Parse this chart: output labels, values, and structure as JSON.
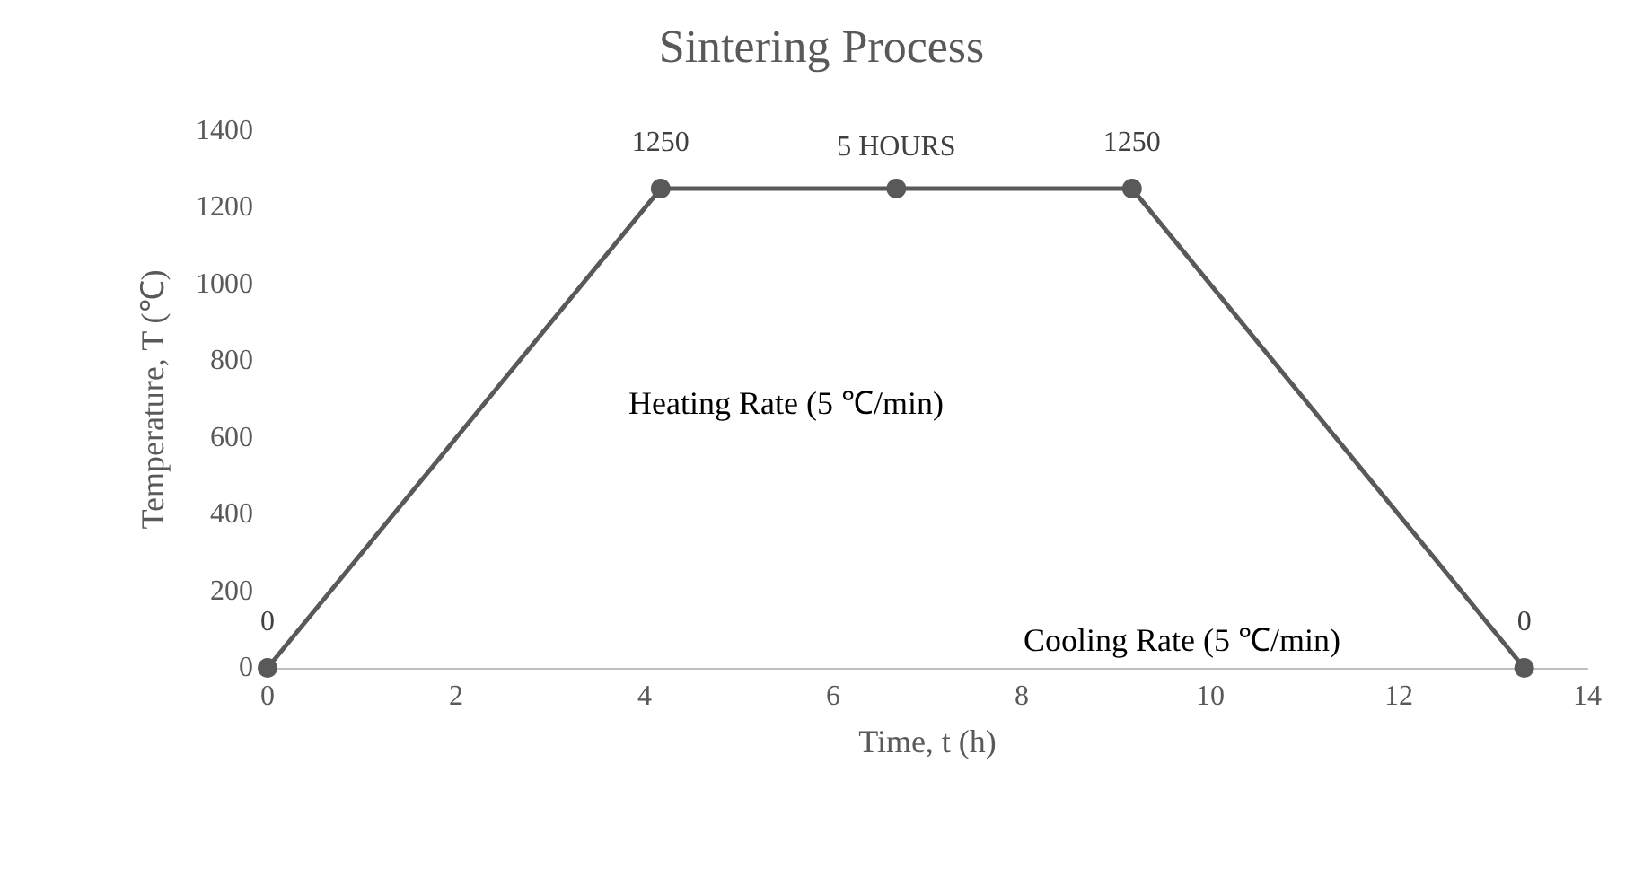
{
  "chart_data": {
    "type": "line",
    "title": "Sintering Process",
    "xlabel": "Time, t (h)",
    "ylabel": "Temperature, T (℃)",
    "x": [
      0,
      4.17,
      6.67,
      9.17,
      13.33
    ],
    "series": [
      {
        "color": "#595959",
        "values": [
          0,
          1250,
          1250,
          1250,
          0
        ],
        "value_labels": [
          "0",
          "1250",
          null,
          "1250",
          "0"
        ]
      }
    ],
    "xlim": [
      0,
      14
    ],
    "xticks": [
      0,
      2,
      4,
      6,
      8,
      10,
      12,
      14
    ],
    "ylim": [
      0,
      1400
    ],
    "yticks": [
      0,
      200,
      400,
      600,
      800,
      1000,
      1200,
      1400
    ],
    "grid": false,
    "marker": "circle",
    "line_style": "solid",
    "annotations": [
      {
        "text": "5 HOURS",
        "x": 6.67,
        "y": 1250
      },
      "Heating Rate (5 ℃/min)",
      "Cooling Rate (5 ℃/min)"
    ]
  }
}
